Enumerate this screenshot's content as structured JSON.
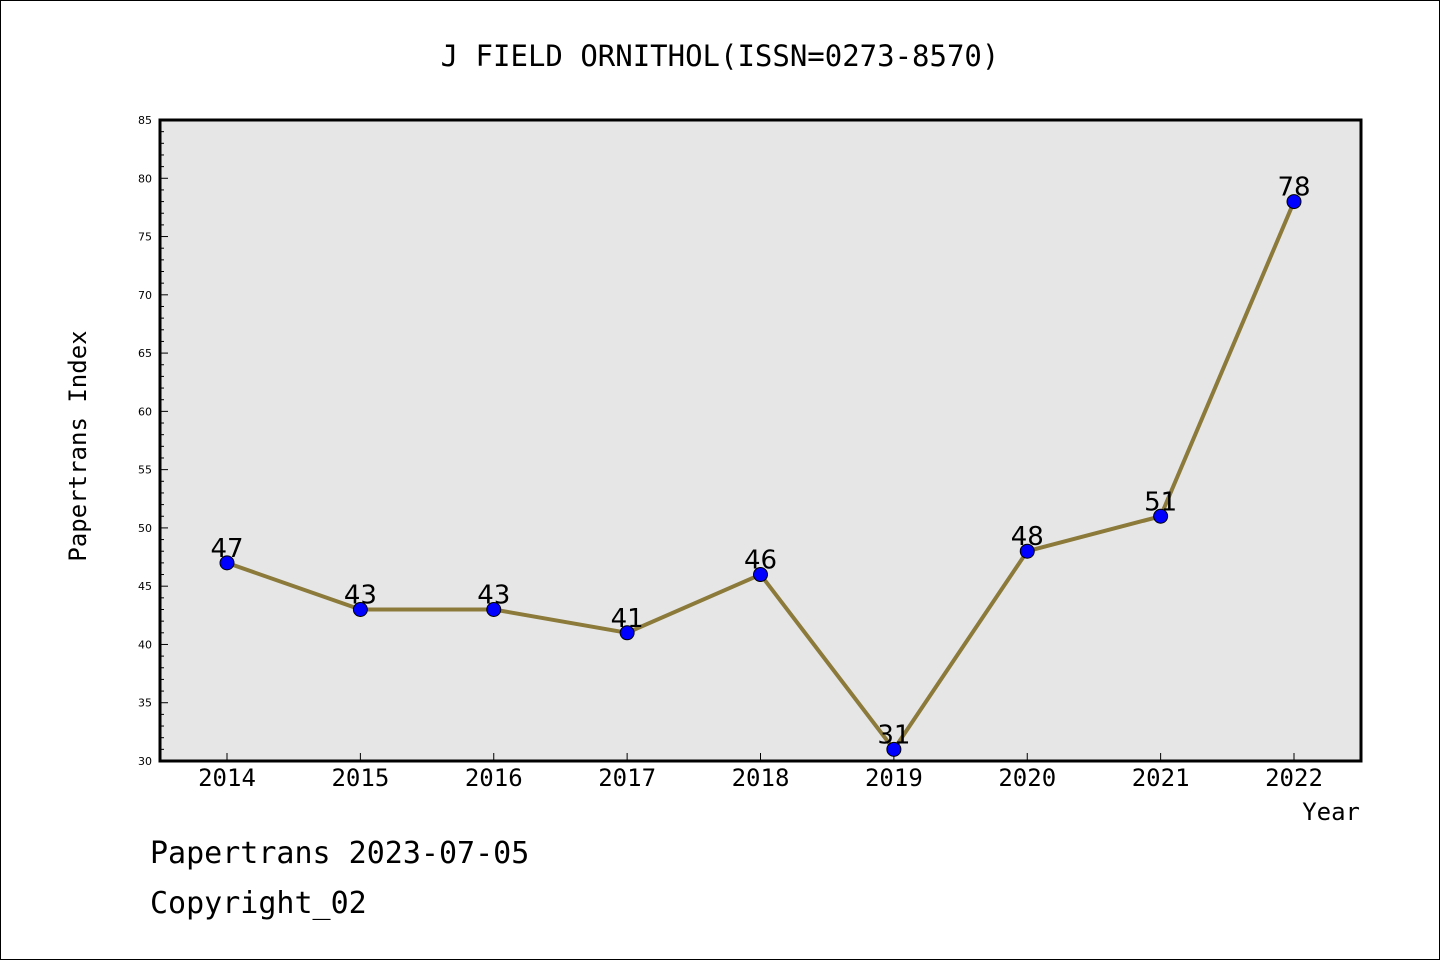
{
  "chart_data": {
    "type": "line",
    "title": "J FIELD ORNITHOL(ISSN=0273-8570)",
    "xlabel": "Year",
    "ylabel": "Papertrans Index",
    "categories": [
      "2014",
      "2015",
      "2016",
      "2017",
      "2018",
      "2019",
      "2020",
      "2021",
      "2022"
    ],
    "values": [
      47,
      43,
      43,
      41,
      46,
      31,
      48,
      51,
      78
    ],
    "ylim": [
      30,
      85
    ],
    "yticks": [
      30,
      35,
      40,
      45,
      50,
      55,
      60,
      65,
      70,
      75,
      80,
      85
    ],
    "grid": false,
    "colors": {
      "line": "#8b7a3a",
      "marker": "#0000ff",
      "plot_bg": "#e6e6e6"
    }
  },
  "footer": {
    "date_line": "Papertrans 2023-07-05",
    "copyright": "Copyright_02"
  }
}
